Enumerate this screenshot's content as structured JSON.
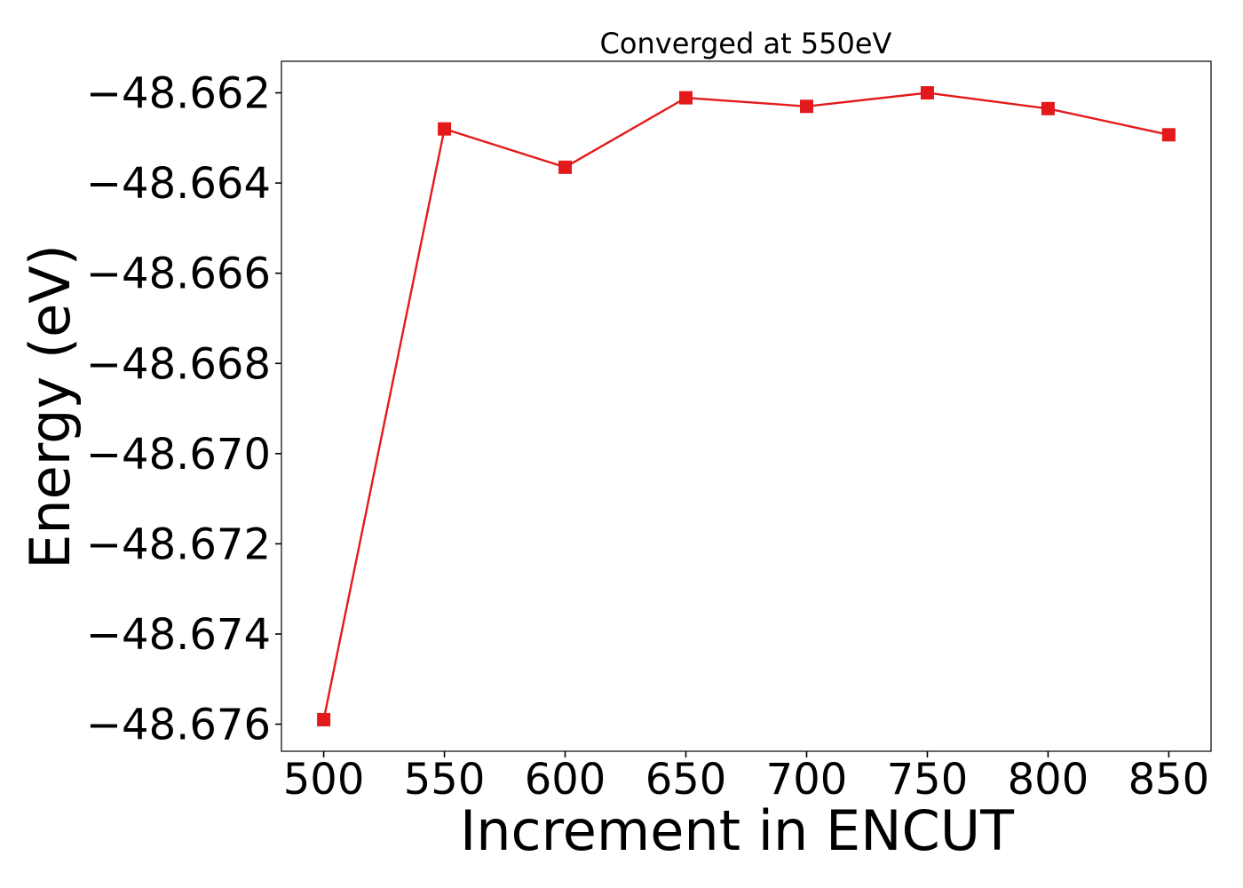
{
  "chart_data": {
    "type": "line",
    "title": "Converged at 550eV",
    "xlabel": "Increment in ENCUT",
    "ylabel": "Energy (eV)",
    "x": [
      500,
      550,
      600,
      650,
      700,
      750,
      800,
      850
    ],
    "series": [
      {
        "values": [
          -48.6759,
          -48.6628,
          -48.66365,
          -48.66211,
          -48.6623,
          -48.662,
          -48.66235,
          -48.66293
        ],
        "color": "#e31a1c",
        "marker": "square"
      }
    ],
    "xticks": [
      500,
      550,
      600,
      650,
      700,
      750,
      800,
      850
    ],
    "xtick_labels": [
      "500",
      "550",
      "600",
      "650",
      "700",
      "750",
      "800",
      "850"
    ],
    "yticks": [
      -48.662,
      -48.664,
      -48.666,
      -48.668,
      -48.67,
      -48.672,
      -48.674,
      -48.676
    ],
    "ytick_labels": [
      "−48.662",
      "−48.664",
      "−48.666",
      "−48.668",
      "−48.670",
      "−48.672",
      "−48.674",
      "−48.676"
    ],
    "xlim": [
      482.5,
      867.5
    ],
    "ylim": [
      -48.6766,
      -48.6613
    ],
    "grid": false,
    "legend": false
  }
}
